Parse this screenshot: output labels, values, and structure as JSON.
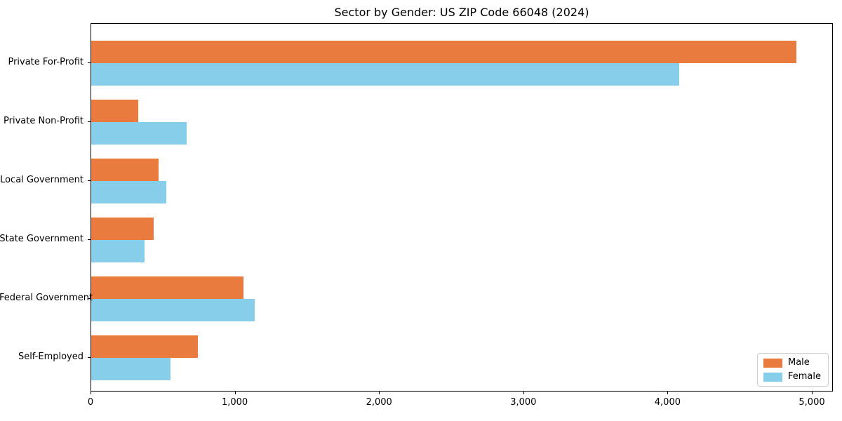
{
  "chart_data": {
    "type": "bar",
    "orientation": "horizontal",
    "title": "Sector by Gender: US ZIP Code 66048 (2024)",
    "categories": [
      "Private For-Profit",
      "Private Non-Profit",
      "Local Government",
      "State Government",
      "Federal Government",
      "Self-Employed"
    ],
    "series": [
      {
        "name": "Male",
        "color": "#e87b3d",
        "values": [
          4888,
          328,
          469,
          431,
          1054,
          738
        ]
      },
      {
        "name": "Female",
        "color": "#87ceeb",
        "values": [
          4074,
          660,
          518,
          368,
          1133,
          551
        ]
      }
    ],
    "xlabel": "",
    "ylabel": "",
    "xlim": [
      0,
      5146
    ],
    "xticks": {
      "values": [
        0,
        1000,
        2000,
        3000,
        4000,
        5000
      ],
      "labels": [
        "0",
        "1,000",
        "2,000",
        "3,000",
        "4,000",
        "5,000"
      ]
    },
    "grid": false,
    "legend": {
      "position": "lower right",
      "entries": [
        "Male",
        "Female"
      ]
    },
    "colors": {
      "male": "#e87b3d",
      "female": "#87ceeb",
      "spine": "#000000",
      "background": "#ffffff"
    }
  }
}
